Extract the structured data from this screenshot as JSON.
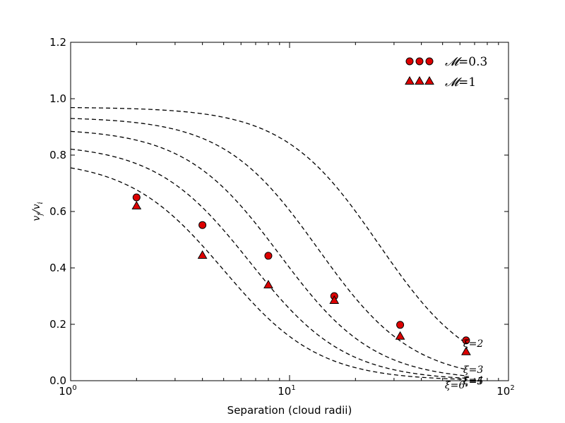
{
  "chart_data": {
    "type": "scatter",
    "title": "",
    "xlabel": "Separation (cloud radii)",
    "ylabel": "v_f / v_i",
    "ylabel_parts": {
      "base1": "v",
      "sub1": "f",
      "slash": "/",
      "base2": "v",
      "sub2": "i"
    },
    "xscale": "log",
    "xlim": [
      1,
      100
    ],
    "ylim": [
      0.0,
      1.2
    ],
    "x_ticks": [
      {
        "value": 1,
        "base": "10",
        "exp": "0"
      },
      {
        "value": 10,
        "base": "10",
        "exp": "1"
      },
      {
        "value": 100,
        "base": "10",
        "exp": "2"
      }
    ],
    "y_ticks": [
      {
        "value": 0.0,
        "label": "0.0"
      },
      {
        "value": 0.2,
        "label": "0.2"
      },
      {
        "value": 0.4,
        "label": "0.4"
      },
      {
        "value": 0.6,
        "label": "0.6"
      },
      {
        "value": 0.8,
        "label": "0.8"
      },
      {
        "value": 1.0,
        "label": "1.0"
      },
      {
        "value": 1.2,
        "label": "1.2"
      }
    ],
    "legend_position": "top-right",
    "series": [
      {
        "name": "M=0.3",
        "label_symbol": "𝓜",
        "label_value": "=0.3",
        "marker": "circle",
        "color": "#dd0000",
        "x": [
          2,
          4,
          8,
          16,
          32,
          64
        ],
        "y": [
          0.65,
          0.552,
          0.443,
          0.3,
          0.198,
          0.143
        ]
      },
      {
        "name": "M=1",
        "label_symbol": "𝓜",
        "label_value": "=1",
        "marker": "triangle",
        "color": "#dd0000",
        "x": [
          2,
          4,
          8,
          16,
          32,
          64
        ],
        "y": [
          0.62,
          0.445,
          0.34,
          0.285,
          0.158,
          0.103
        ]
      }
    ],
    "curves": [
      {
        "xi": "2",
        "label": "ξ=2",
        "a": 0.0,
        "y0": 0.97,
        "x_half": 25.5,
        "n": 2.0
      },
      {
        "xi": "3",
        "label": "ξ=3",
        "a": 0.0,
        "y0": 0.935,
        "x_half": 13.5,
        "n": 2.0
      },
      {
        "xi": "4",
        "label": "ξ=4",
        "a": 0.0,
        "y0": 0.895,
        "x_half": 9.0,
        "n": 2.0
      },
      {
        "xi": "5",
        "label": "ξ=5",
        "a": 0.0,
        "y0": 0.84,
        "x_half": 6.6,
        "n": 2.0
      },
      {
        "xi": "6",
        "label": "ξ=6",
        "a": 0.0,
        "y0": 0.785,
        "x_half": 5.0,
        "n": 2.0
      }
    ]
  }
}
